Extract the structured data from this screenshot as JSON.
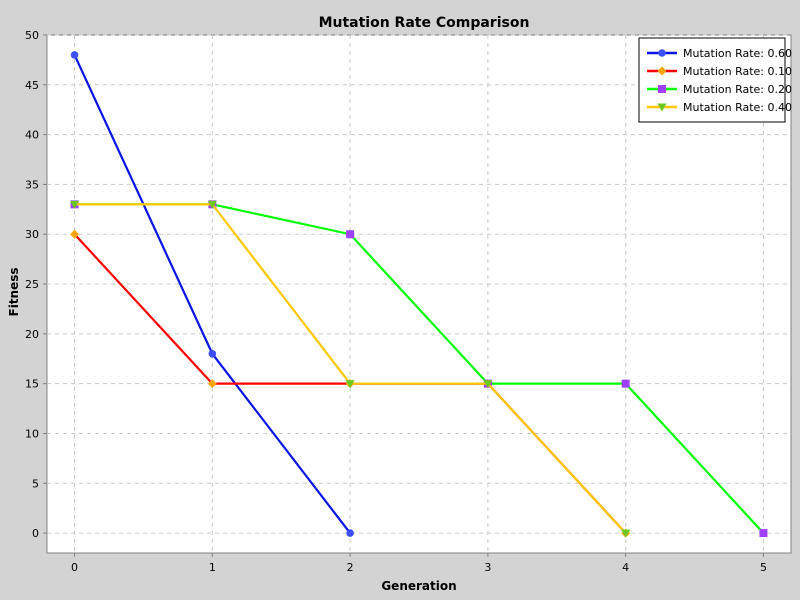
{
  "chart_data": {
    "type": "line",
    "title": "Mutation Rate Comparison",
    "xlabel": "Generation",
    "ylabel": "Fitness",
    "xlim": [
      -0.2,
      5.2
    ],
    "ylim": [
      -2,
      50
    ],
    "x_ticks": [
      0,
      1,
      2,
      3,
      4,
      5
    ],
    "y_ticks": [
      0,
      5,
      10,
      15,
      20,
      25,
      30,
      35,
      40,
      45,
      50
    ],
    "grid": true,
    "legend_position": "top-right",
    "series": [
      {
        "name": "Mutation Rate: 0.60",
        "line_color": "#0a14e6",
        "marker_color": "#3c50ff",
        "marker": "circle",
        "x": [
          0,
          1,
          2
        ],
        "y": [
          48,
          18,
          0
        ]
      },
      {
        "name": "Mutation Rate: 0.10",
        "line_color": "#ff0000",
        "marker_color": "#ffa500",
        "marker": "diamond",
        "x": [
          0,
          1,
          2,
          3,
          4
        ],
        "y": [
          30,
          15,
          15,
          15,
          0
        ]
      },
      {
        "name": "Mutation Rate: 0.20",
        "line_color": "#00ff00",
        "marker_color": "#a040ff",
        "marker": "square",
        "x": [
          0,
          1,
          2,
          3,
          4,
          5
        ],
        "y": [
          33,
          33,
          30,
          15,
          15,
          0
        ]
      },
      {
        "name": "Mutation Rate: 0.40",
        "line_color": "#ffc800",
        "marker_color": "#6cc81e",
        "marker": "triangle-down",
        "x": [
          0,
          1,
          2,
          3,
          4
        ],
        "y": [
          33,
          33,
          15,
          15,
          0
        ]
      }
    ]
  }
}
